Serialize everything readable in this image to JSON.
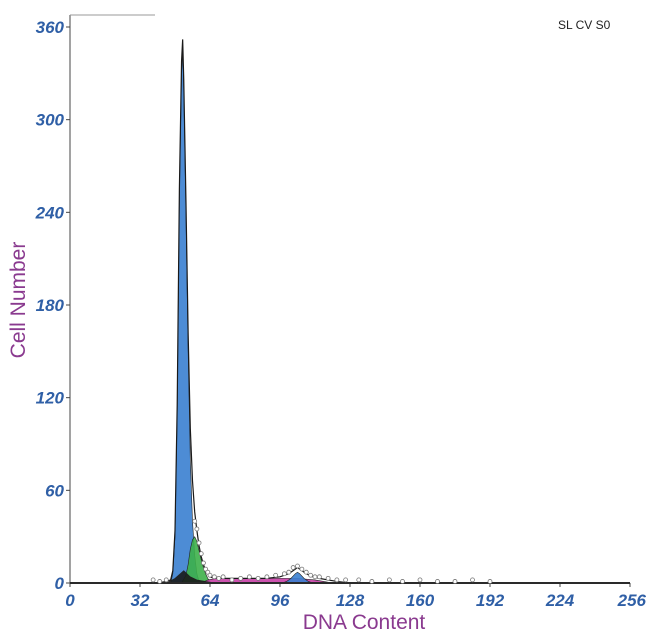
{
  "chart_data": {
    "type": "area",
    "title": "",
    "corner_label": "SL CV S0",
    "xlabel": "DNA Content",
    "ylabel": "Cell Number",
    "xlim": [
      0,
      256
    ],
    "ylim": [
      0,
      360
    ],
    "x_ticks": [
      0,
      32,
      64,
      96,
      128,
      160,
      192,
      224,
      256
    ],
    "y_ticks": [
      0,
      60,
      120,
      180,
      240,
      300,
      360
    ],
    "grid": false,
    "legend": "none",
    "series": [
      {
        "component": "G1 peak",
        "color": "#3a7fd0",
        "points": [
          [
            46,
            0
          ],
          [
            47,
            6
          ],
          [
            48,
            30
          ],
          [
            49,
            110
          ],
          [
            50,
            250
          ],
          [
            51,
            330
          ],
          [
            51.5,
            345
          ],
          [
            52,
            320
          ],
          [
            53,
            240
          ],
          [
            54,
            150
          ],
          [
            55,
            80
          ],
          [
            56,
            40
          ],
          [
            57,
            18
          ],
          [
            58,
            6
          ],
          [
            59,
            1
          ],
          [
            60,
            0
          ]
        ]
      },
      {
        "component": "G1 shoulder",
        "color": "#3db04a",
        "points": [
          [
            51,
            0
          ],
          [
            53,
            5
          ],
          [
            54,
            12
          ],
          [
            55,
            22
          ],
          [
            56,
            28
          ],
          [
            57,
            30
          ],
          [
            58,
            27
          ],
          [
            59,
            21
          ],
          [
            60,
            15
          ],
          [
            61,
            10
          ],
          [
            62,
            6
          ],
          [
            63,
            3
          ],
          [
            64,
            1
          ],
          [
            65,
            0
          ]
        ]
      },
      {
        "component": "S phase",
        "color": "#c83fa6",
        "points": [
          [
            60,
            0
          ],
          [
            63,
            2
          ],
          [
            67,
            3
          ],
          [
            72,
            3
          ],
          [
            80,
            3
          ],
          [
            88,
            3
          ],
          [
            96,
            3
          ],
          [
            104,
            3
          ],
          [
            112,
            2
          ],
          [
            116,
            1
          ],
          [
            120,
            0
          ]
        ]
      },
      {
        "component": "G2 peak",
        "color": "#3a7fd0",
        "points": [
          [
            97,
            0
          ],
          [
            99,
            1
          ],
          [
            101,
            3
          ],
          [
            103,
            6
          ],
          [
            104,
            7
          ],
          [
            105,
            6
          ],
          [
            107,
            3
          ],
          [
            109,
            1
          ],
          [
            111,
            0
          ]
        ]
      },
      {
        "component": "debris",
        "color": "#1a1a1a",
        "points": [
          [
            44,
            0
          ],
          [
            48,
            3
          ],
          [
            52,
            8
          ],
          [
            55,
            4
          ],
          [
            58,
            2
          ],
          [
            62,
            1
          ],
          [
            66,
            0
          ]
        ]
      }
    ],
    "fit_curve": [
      [
        40,
        0
      ],
      [
        44,
        1
      ],
      [
        46,
        2
      ],
      [
        47,
        8
      ],
      [
        48,
        34
      ],
      [
        49,
        115
      ],
      [
        50,
        255
      ],
      [
        51,
        338
      ],
      [
        51.5,
        352
      ],
      [
        52,
        326
      ],
      [
        53,
        248
      ],
      [
        54,
        162
      ],
      [
        55,
        100
      ],
      [
        56,
        66
      ],
      [
        57,
        46
      ],
      [
        58,
        34
      ],
      [
        59,
        24
      ],
      [
        60,
        17
      ],
      [
        61,
        12
      ],
      [
        62,
        8
      ],
      [
        63,
        6
      ],
      [
        64,
        4
      ],
      [
        66,
        3
      ],
      [
        72,
        3
      ],
      [
        80,
        3
      ],
      [
        90,
        3
      ],
      [
        96,
        4
      ],
      [
        100,
        6
      ],
      [
        103,
        9
      ],
      [
        104,
        10
      ],
      [
        106,
        8
      ],
      [
        108,
        6
      ],
      [
        111,
        4
      ],
      [
        114,
        3
      ],
      [
        118,
        2
      ],
      [
        122,
        1
      ],
      [
        128,
        0
      ],
      [
        256,
        0
      ]
    ],
    "scatter_points": [
      [
        38,
        2
      ],
      [
        41,
        1
      ],
      [
        44,
        2
      ],
      [
        57,
        40
      ],
      [
        58,
        35
      ],
      [
        59,
        26
      ],
      [
        60,
        19
      ],
      [
        61,
        13
      ],
      [
        62,
        9
      ],
      [
        63,
        7
      ],
      [
        64,
        5
      ],
      [
        66,
        4
      ],
      [
        68,
        3
      ],
      [
        70,
        4
      ],
      [
        74,
        2
      ],
      [
        78,
        3
      ],
      [
        82,
        4
      ],
      [
        86,
        3
      ],
      [
        90,
        4
      ],
      [
        94,
        5
      ],
      [
        98,
        6
      ],
      [
        100,
        7
      ],
      [
        102,
        10
      ],
      [
        104,
        11
      ],
      [
        106,
        9
      ],
      [
        108,
        7
      ],
      [
        110,
        5
      ],
      [
        112,
        4
      ],
      [
        114,
        4
      ],
      [
        118,
        3
      ],
      [
        122,
        2
      ],
      [
        126,
        2
      ],
      [
        132,
        2
      ],
      [
        138,
        1
      ],
      [
        146,
        2
      ],
      [
        152,
        1
      ],
      [
        160,
        2
      ],
      [
        168,
        1
      ],
      [
        176,
        1
      ],
      [
        184,
        2
      ],
      [
        192,
        1
      ]
    ]
  }
}
